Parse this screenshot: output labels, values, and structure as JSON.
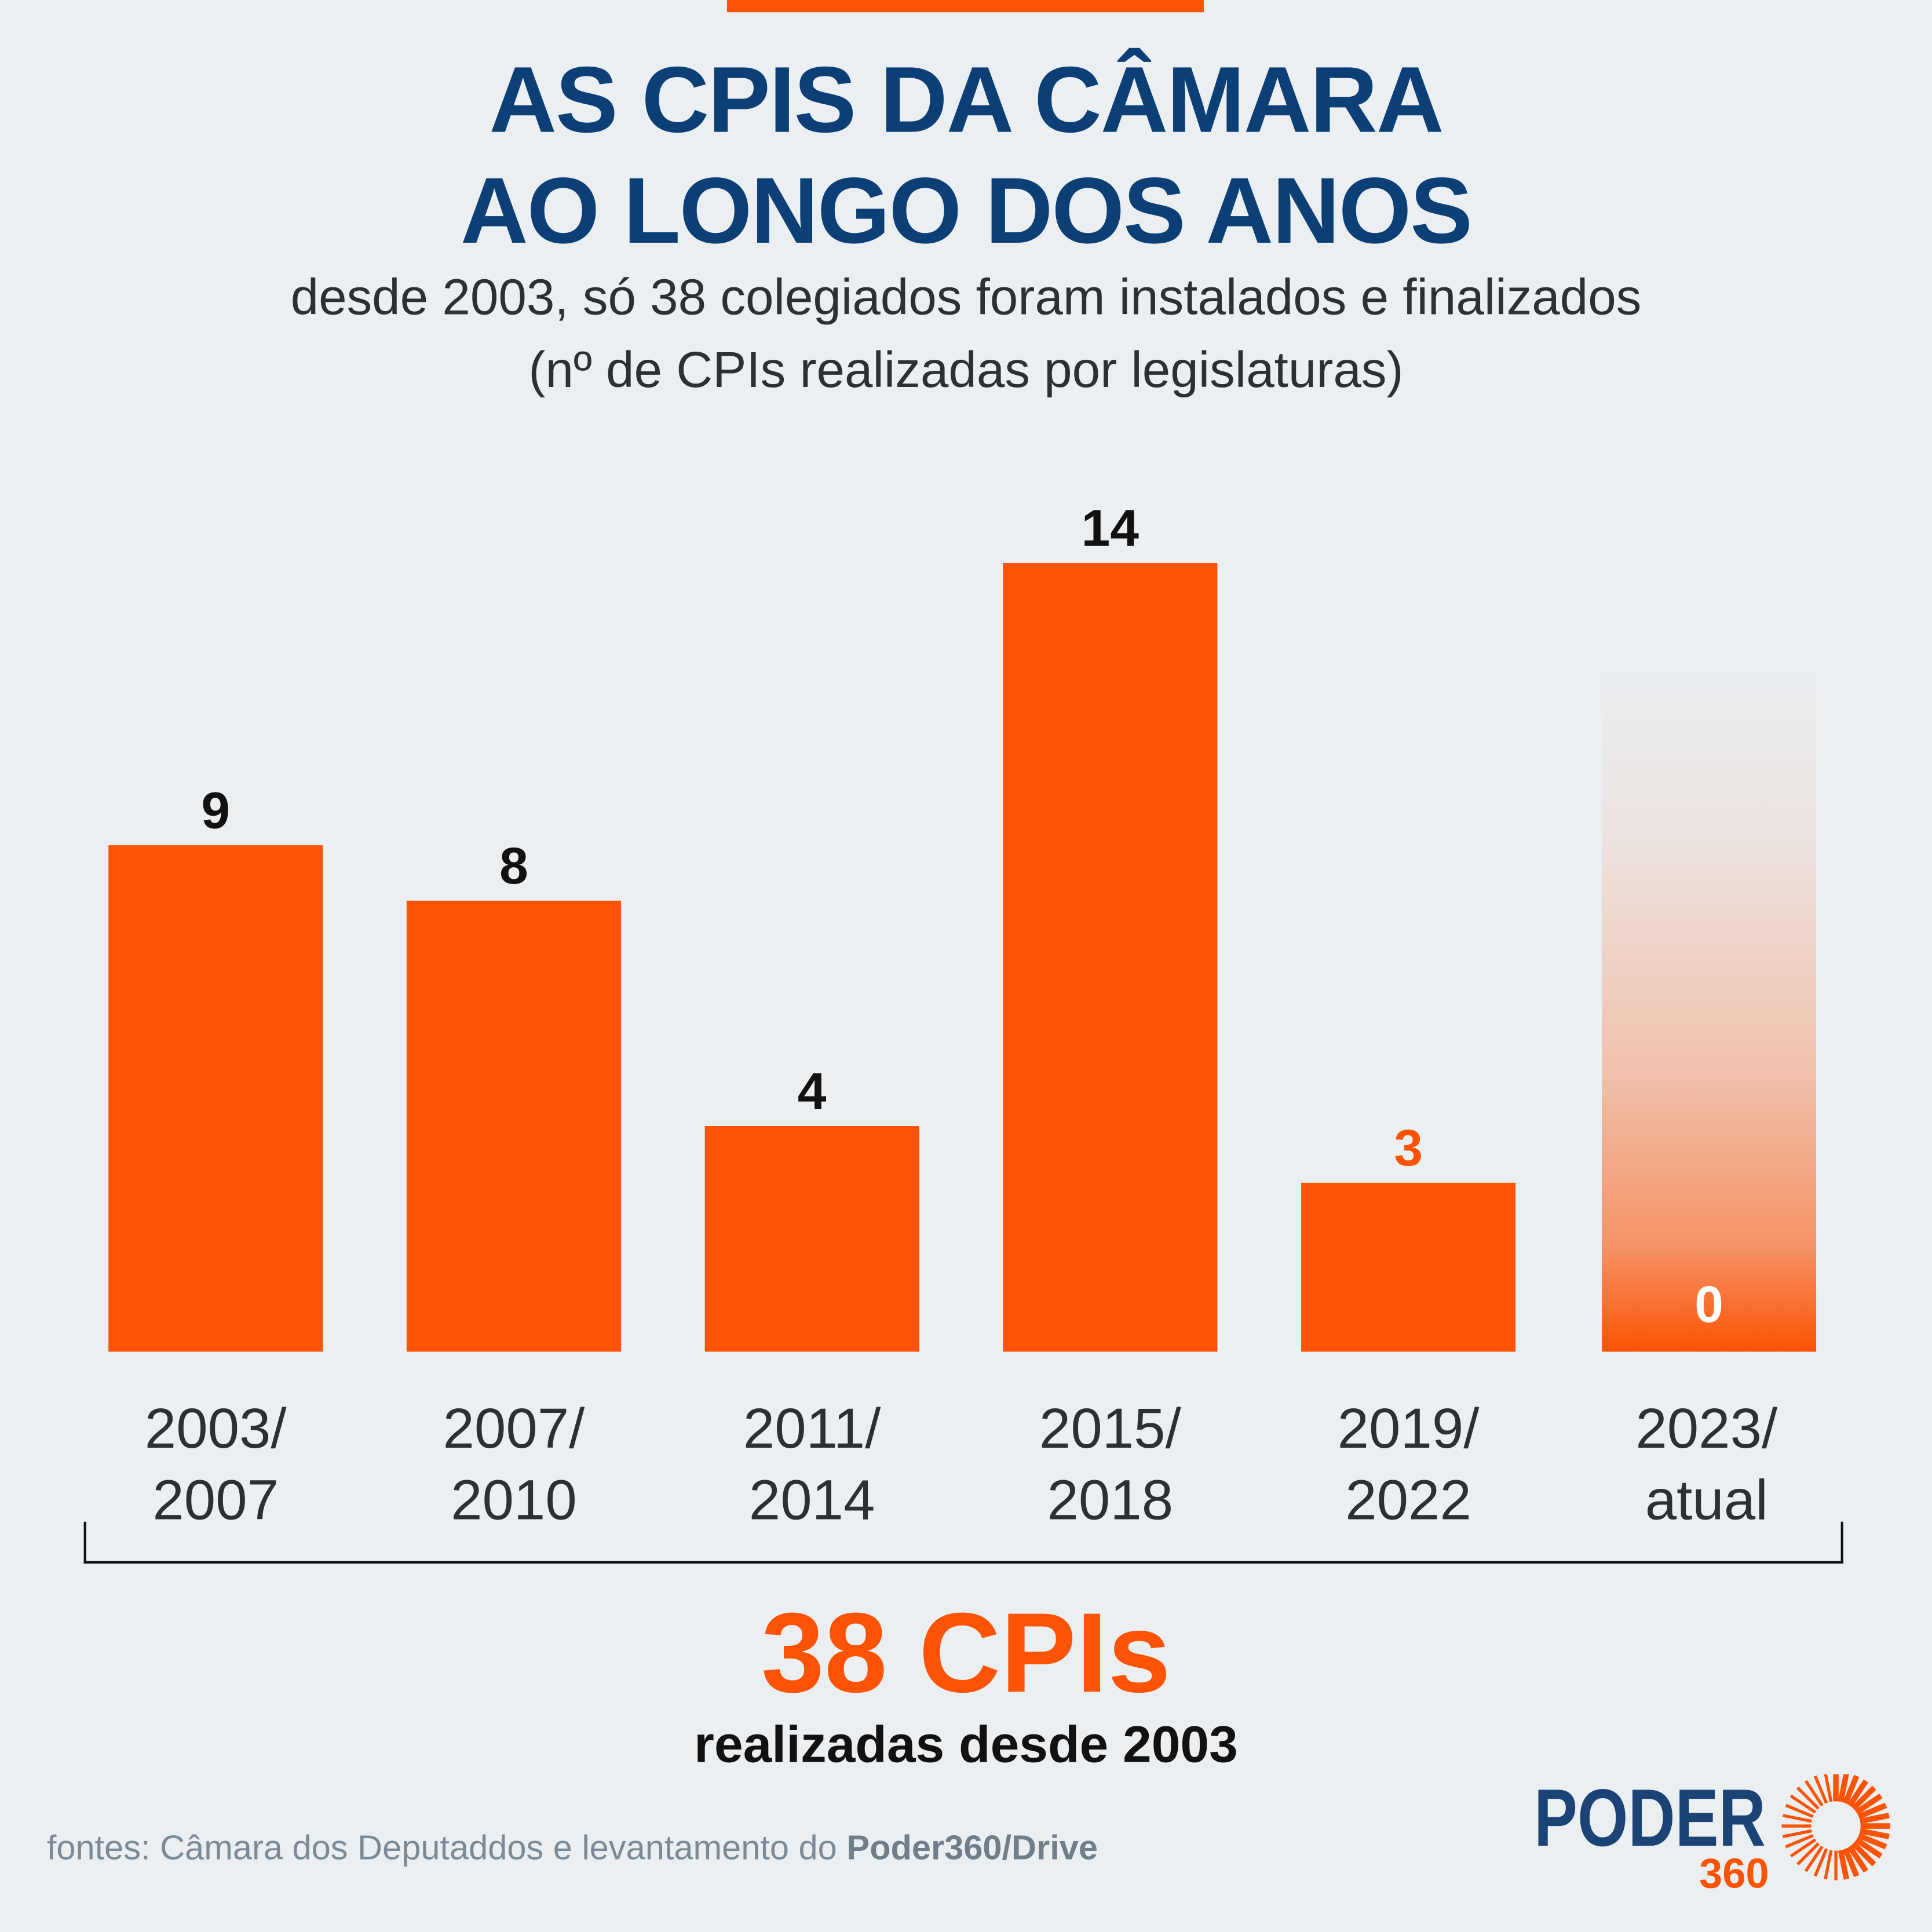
{
  "title_line1": "AS CPIS DA CÂMARA",
  "title_line2": "AO LONGO DOS ANOS",
  "subtitle_line1": "desde 2003, só 38 colegiados foram instalados e finalizados",
  "subtitle_line2": "(nº de CPIs realizadas por legislaturas)",
  "colors": {
    "accent": "#fc5305",
    "title": "#0d3f77",
    "background": "#ebeff2"
  },
  "chart_data": {
    "type": "bar",
    "categories": [
      [
        "2003/",
        "2007"
      ],
      [
        "2007/",
        "2010"
      ],
      [
        "2011/",
        "2014"
      ],
      [
        "2015/",
        "2018"
      ],
      [
        "2019/",
        "2022"
      ],
      [
        "2023/",
        "atual"
      ]
    ],
    "values": [
      9,
      8,
      4,
      14,
      3,
      0
    ],
    "value_labels": [
      "9",
      "8",
      "4",
      "14",
      "3",
      "0"
    ],
    "title": "",
    "xlabel": "",
    "ylabel": ""
  },
  "total": {
    "value": "38 CPIs",
    "caption": "realizadas desde 2003"
  },
  "source": {
    "prefix": "fontes: Câmara dos Deputaddos e levantamento do ",
    "bold": "Poder360/Drive"
  },
  "logo": {
    "text": "PODER",
    "number": "360"
  }
}
